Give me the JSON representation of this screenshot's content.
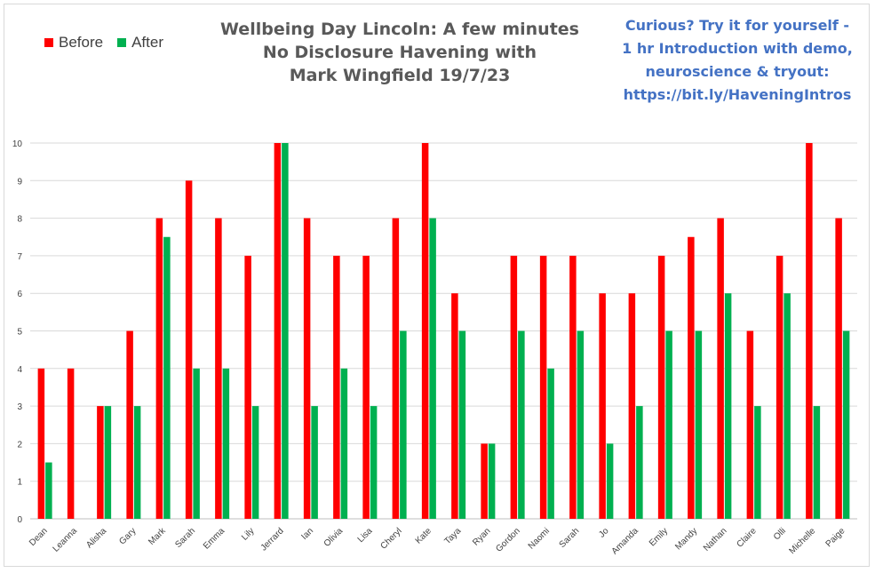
{
  "chart_data": {
    "type": "bar",
    "title": "Wellbeing Day Lincoln: A few minutes\nNo Disclosure Havening with\nMark Wingfield 19/7/23",
    "promo": "Curious?  Try it for yourself -\n1 hr Introduction with demo,\nneuroscience & tryout:\nhttps://bit.ly/HaveningIntros",
    "xlabel": "",
    "ylabel": "",
    "ylim": [
      0,
      10
    ],
    "yticks": [
      "0",
      "1",
      "2",
      "3",
      "4",
      "5",
      "6",
      "7",
      "8",
      "9",
      "10"
    ],
    "grid": true,
    "legend_position": "top-left",
    "categories": [
      "Dean",
      "Leanna",
      "Alisha",
      "Gary",
      "Mark",
      "Sarah",
      "Emma",
      "Lily",
      "Jerrard",
      "Ian",
      "Olivia",
      "Lisa",
      "Cheryl",
      "Kate",
      "Taya",
      "Ryan",
      "Gordon",
      "Naomi",
      "Sarah",
      "Jo",
      "Amanda",
      "Emily",
      "Mandy",
      "Nathan",
      "Claire",
      "Olli",
      "Michelle",
      "Paige"
    ],
    "series": [
      {
        "name": "Before",
        "color": "#ff0000",
        "values": [
          4,
          4,
          3,
          5,
          8,
          9,
          8,
          7,
          10,
          8,
          7,
          7,
          8,
          10,
          6,
          2,
          7,
          7,
          7,
          6,
          6,
          7,
          7.5,
          8,
          5,
          7,
          10,
          8
        ]
      },
      {
        "name": "After",
        "color": "#00b050",
        "values": [
          1.5,
          null,
          3,
          3,
          7.5,
          4,
          4,
          3,
          10,
          3,
          4,
          3,
          5,
          8,
          5,
          2,
          5,
          4,
          5,
          2,
          3,
          5,
          5,
          6,
          3,
          6,
          3,
          5
        ]
      }
    ]
  }
}
